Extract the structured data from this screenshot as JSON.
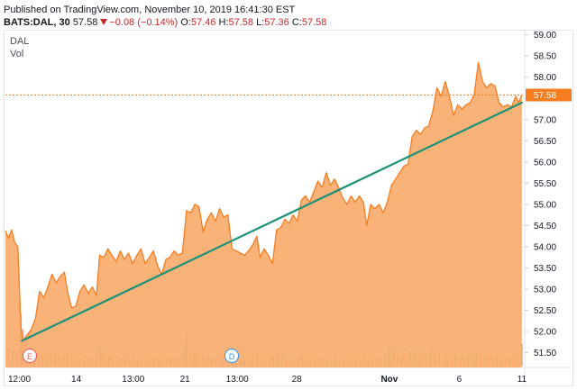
{
  "header": {
    "published": "Published on TradingView.com, November 10, 2019 16:41:30 EST",
    "symbol": "BATS:DAL, 30",
    "last": "57.58",
    "change": "−0.08 (−0.14%)",
    "open_label": "O:",
    "open": "57.46",
    "high_label": "H:",
    "high": "57.58",
    "low_label": "L:",
    "low": "57.36",
    "close_label": "C:",
    "close": "57.58"
  },
  "legend": {
    "symbol": "DAL",
    "volume": "Vol"
  },
  "markers": {
    "earnings": "E",
    "dividend": "D"
  },
  "colors": {
    "price_line": "#f57c1f",
    "area_fill": "#f8a867",
    "trendline": "#1b9178",
    "price_label_bg": "#f57c1f",
    "vol_up": "#8fc7a6",
    "vol_down": "#f2a3a3"
  },
  "chart_data": {
    "type": "area",
    "title": "",
    "xlabel": "",
    "ylabel": "",
    "ylim": [
      51.15,
      59.1
    ],
    "y_ticks": [
      "59.00",
      "58.50",
      "58.00",
      "57.50",
      "57.00",
      "56.50",
      "56.00",
      "55.50",
      "55.00",
      "54.50",
      "54.00",
      "53.50",
      "53.00",
      "52.50",
      "52.00",
      "51.50"
    ],
    "x_ticks": [
      "12:00",
      "14",
      "13:00",
      "21",
      "13:00",
      "28",
      "Nov",
      "6",
      "11"
    ],
    "last_price_label": "57.58",
    "trendline": {
      "from": [
        0.032,
        51.78
      ],
      "to": [
        0.998,
        57.4
      ]
    },
    "series": [
      {
        "values": [
          [
            0.0,
            54.38
          ],
          [
            0.006,
            54.2
          ],
          [
            0.012,
            54.4
          ],
          [
            0.018,
            54.1
          ],
          [
            0.024,
            54.0
          ],
          [
            0.03,
            52.1
          ],
          [
            0.034,
            51.78
          ],
          [
            0.042,
            51.92
          ],
          [
            0.05,
            52.05
          ],
          [
            0.058,
            52.3
          ],
          [
            0.066,
            52.95
          ],
          [
            0.074,
            52.8
          ],
          [
            0.082,
            53.05
          ],
          [
            0.09,
            53.35
          ],
          [
            0.098,
            53.15
          ],
          [
            0.106,
            53.3
          ],
          [
            0.114,
            53.4
          ],
          [
            0.12,
            52.95
          ],
          [
            0.128,
            52.55
          ],
          [
            0.136,
            52.6
          ],
          [
            0.144,
            52.95
          ],
          [
            0.152,
            53.1
          ],
          [
            0.16,
            52.9
          ],
          [
            0.168,
            53.05
          ],
          [
            0.176,
            52.85
          ],
          [
            0.182,
            53.8
          ],
          [
            0.19,
            53.75
          ],
          [
            0.198,
            53.95
          ],
          [
            0.206,
            53.8
          ],
          [
            0.214,
            53.65
          ],
          [
            0.222,
            53.9
          ],
          [
            0.23,
            53.7
          ],
          [
            0.238,
            53.85
          ],
          [
            0.246,
            53.6
          ],
          [
            0.254,
            53.8
          ],
          [
            0.262,
            53.95
          ],
          [
            0.27,
            53.6
          ],
          [
            0.278,
            53.75
          ],
          [
            0.286,
            53.9
          ],
          [
            0.294,
            53.55
          ],
          [
            0.302,
            53.35
          ],
          [
            0.31,
            53.7
          ],
          [
            0.318,
            53.75
          ],
          [
            0.326,
            53.9
          ],
          [
            0.334,
            53.8
          ],
          [
            0.342,
            53.85
          ],
          [
            0.35,
            54.85
          ],
          [
            0.358,
            54.8
          ],
          [
            0.366,
            55.0
          ],
          [
            0.374,
            54.95
          ],
          [
            0.382,
            54.35
          ],
          [
            0.39,
            54.65
          ],
          [
            0.398,
            54.8
          ],
          [
            0.406,
            54.6
          ],
          [
            0.414,
            54.9
          ],
          [
            0.422,
            54.7
          ],
          [
            0.43,
            54.75
          ],
          [
            0.438,
            53.95
          ],
          [
            0.446,
            53.9
          ],
          [
            0.454,
            53.85
          ],
          [
            0.462,
            53.8
          ],
          [
            0.47,
            53.9
          ],
          [
            0.478,
            54.05
          ],
          [
            0.486,
            54.25
          ],
          [
            0.492,
            53.75
          ],
          [
            0.5,
            53.95
          ],
          [
            0.508,
            53.8
          ],
          [
            0.516,
            53.6
          ],
          [
            0.524,
            54.4
          ],
          [
            0.532,
            54.45
          ],
          [
            0.54,
            54.65
          ],
          [
            0.548,
            54.55
          ],
          [
            0.556,
            54.75
          ],
          [
            0.564,
            54.6
          ],
          [
            0.572,
            55.1
          ],
          [
            0.58,
            55.2
          ],
          [
            0.588,
            55.05
          ],
          [
            0.596,
            55.3
          ],
          [
            0.604,
            55.55
          ],
          [
            0.612,
            55.4
          ],
          [
            0.62,
            55.75
          ],
          [
            0.628,
            55.45
          ],
          [
            0.636,
            55.6
          ],
          [
            0.644,
            55.4
          ],
          [
            0.652,
            55.15
          ],
          [
            0.66,
            55.0
          ],
          [
            0.668,
            55.2
          ],
          [
            0.676,
            55.05
          ],
          [
            0.684,
            55.2
          ],
          [
            0.692,
            55.05
          ],
          [
            0.698,
            54.5
          ],
          [
            0.706,
            55.0
          ],
          [
            0.714,
            54.9
          ],
          [
            0.722,
            55.0
          ],
          [
            0.73,
            54.8
          ],
          [
            0.738,
            55.05
          ],
          [
            0.746,
            55.45
          ],
          [
            0.754,
            55.6
          ],
          [
            0.762,
            55.75
          ],
          [
            0.77,
            55.9
          ],
          [
            0.778,
            55.95
          ],
          [
            0.786,
            56.6
          ],
          [
            0.794,
            56.75
          ],
          [
            0.802,
            56.65
          ],
          [
            0.81,
            56.8
          ],
          [
            0.818,
            56.85
          ],
          [
            0.826,
            57.2
          ],
          [
            0.834,
            57.75
          ],
          [
            0.842,
            57.55
          ],
          [
            0.85,
            57.9
          ],
          [
            0.858,
            57.55
          ],
          [
            0.866,
            57.1
          ],
          [
            0.874,
            57.35
          ],
          [
            0.882,
            57.25
          ],
          [
            0.89,
            57.35
          ],
          [
            0.898,
            57.4
          ],
          [
            0.906,
            57.6
          ],
          [
            0.914,
            58.35
          ],
          [
            0.922,
            57.9
          ],
          [
            0.93,
            57.75
          ],
          [
            0.938,
            57.85
          ],
          [
            0.946,
            57.8
          ],
          [
            0.954,
            57.4
          ],
          [
            0.962,
            57.3
          ],
          [
            0.97,
            57.35
          ],
          [
            0.978,
            57.3
          ],
          [
            0.986,
            57.55
          ],
          [
            0.992,
            57.4
          ],
          [
            0.998,
            57.58
          ]
        ]
      }
    ],
    "volume": [
      [
        0.006,
        0.35,
        "d"
      ],
      [
        0.014,
        0.3,
        "u"
      ],
      [
        0.022,
        0.28,
        "d"
      ],
      [
        0.03,
        1.0,
        "u"
      ],
      [
        0.034,
        0.7,
        "d"
      ],
      [
        0.04,
        0.5,
        "u"
      ],
      [
        0.048,
        0.28,
        "d"
      ],
      [
        0.056,
        0.22,
        "u"
      ],
      [
        0.064,
        0.25,
        "u"
      ],
      [
        0.072,
        0.2,
        "d"
      ],
      [
        0.08,
        0.18,
        "u"
      ],
      [
        0.088,
        0.24,
        "d"
      ],
      [
        0.096,
        0.18,
        "u"
      ],
      [
        0.104,
        0.16,
        "d"
      ],
      [
        0.112,
        0.17,
        "u"
      ],
      [
        0.12,
        0.22,
        "d"
      ],
      [
        0.128,
        0.15,
        "u"
      ],
      [
        0.136,
        0.18,
        "d"
      ],
      [
        0.144,
        0.14,
        "u"
      ],
      [
        0.152,
        0.2,
        "d"
      ],
      [
        0.16,
        0.14,
        "u"
      ],
      [
        0.168,
        0.16,
        "d"
      ],
      [
        0.176,
        0.22,
        "u"
      ],
      [
        0.184,
        0.3,
        "u"
      ],
      [
        0.192,
        0.22,
        "d"
      ],
      [
        0.2,
        0.16,
        "u"
      ],
      [
        0.208,
        0.14,
        "d"
      ],
      [
        0.216,
        0.18,
        "u"
      ],
      [
        0.224,
        0.13,
        "d"
      ],
      [
        0.232,
        0.15,
        "u"
      ],
      [
        0.24,
        0.12,
        "d"
      ],
      [
        0.248,
        0.14,
        "u"
      ],
      [
        0.256,
        0.12,
        "d"
      ],
      [
        0.264,
        0.13,
        "u"
      ],
      [
        0.272,
        0.15,
        "d"
      ],
      [
        0.28,
        0.12,
        "u"
      ],
      [
        0.288,
        0.16,
        "d"
      ],
      [
        0.296,
        0.14,
        "u"
      ],
      [
        0.304,
        0.13,
        "d"
      ],
      [
        0.312,
        0.14,
        "u"
      ],
      [
        0.32,
        0.16,
        "d"
      ],
      [
        0.328,
        0.14,
        "u"
      ],
      [
        0.336,
        0.15,
        "d"
      ],
      [
        0.344,
        0.3,
        "u"
      ],
      [
        0.35,
        0.62,
        "u"
      ],
      [
        0.358,
        0.28,
        "d"
      ],
      [
        0.366,
        0.2,
        "u"
      ],
      [
        0.374,
        0.18,
        "d"
      ],
      [
        0.382,
        0.15,
        "u"
      ],
      [
        0.39,
        0.14,
        "d"
      ],
      [
        0.398,
        0.16,
        "u"
      ],
      [
        0.406,
        0.13,
        "d"
      ],
      [
        0.414,
        0.14,
        "u"
      ],
      [
        0.422,
        0.12,
        "d"
      ],
      [
        0.43,
        0.14,
        "u"
      ],
      [
        0.438,
        0.3,
        "d"
      ],
      [
        0.446,
        0.2,
        "u"
      ],
      [
        0.454,
        0.14,
        "d"
      ],
      [
        0.462,
        0.12,
        "u"
      ],
      [
        0.47,
        0.13,
        "d"
      ],
      [
        0.478,
        0.15,
        "u"
      ],
      [
        0.486,
        0.22,
        "d"
      ],
      [
        0.494,
        0.14,
        "u"
      ],
      [
        0.502,
        0.12,
        "d"
      ],
      [
        0.51,
        0.14,
        "u"
      ],
      [
        0.518,
        0.16,
        "d"
      ],
      [
        0.526,
        0.22,
        "u"
      ],
      [
        0.534,
        0.18,
        "u"
      ],
      [
        0.542,
        0.14,
        "d"
      ],
      [
        0.55,
        0.13,
        "u"
      ],
      [
        0.558,
        0.15,
        "d"
      ],
      [
        0.566,
        0.14,
        "u"
      ],
      [
        0.574,
        0.16,
        "u"
      ],
      [
        0.582,
        0.14,
        "d"
      ],
      [
        0.59,
        0.13,
        "u"
      ],
      [
        0.598,
        0.15,
        "d"
      ],
      [
        0.606,
        0.14,
        "u"
      ],
      [
        0.614,
        0.16,
        "d"
      ],
      [
        0.622,
        0.13,
        "u"
      ],
      [
        0.63,
        0.15,
        "d"
      ],
      [
        0.638,
        0.14,
        "u"
      ],
      [
        0.646,
        0.13,
        "d"
      ],
      [
        0.654,
        0.14,
        "u"
      ],
      [
        0.662,
        0.16,
        "d"
      ],
      [
        0.67,
        0.13,
        "u"
      ],
      [
        0.678,
        0.14,
        "d"
      ],
      [
        0.686,
        0.13,
        "u"
      ],
      [
        0.694,
        0.2,
        "d"
      ],
      [
        0.702,
        0.14,
        "u"
      ],
      [
        0.71,
        0.13,
        "d"
      ],
      [
        0.718,
        0.15,
        "u"
      ],
      [
        0.726,
        0.14,
        "d"
      ],
      [
        0.734,
        0.16,
        "u"
      ],
      [
        0.742,
        0.35,
        "u"
      ],
      [
        0.75,
        0.22,
        "u"
      ],
      [
        0.758,
        0.18,
        "d"
      ],
      [
        0.766,
        0.16,
        "u"
      ],
      [
        0.774,
        0.2,
        "d"
      ],
      [
        0.782,
        0.28,
        "u"
      ],
      [
        0.79,
        0.22,
        "u"
      ],
      [
        0.798,
        0.18,
        "d"
      ],
      [
        0.806,
        0.2,
        "u"
      ],
      [
        0.814,
        0.22,
        "d"
      ],
      [
        0.822,
        0.3,
        "u"
      ],
      [
        0.83,
        0.26,
        "d"
      ],
      [
        0.838,
        0.22,
        "u"
      ],
      [
        0.846,
        0.18,
        "d"
      ],
      [
        0.854,
        0.2,
        "u"
      ],
      [
        0.862,
        0.16,
        "d"
      ],
      [
        0.87,
        0.22,
        "u"
      ],
      [
        0.878,
        0.18,
        "d"
      ],
      [
        0.886,
        0.16,
        "u"
      ],
      [
        0.894,
        0.18,
        "d"
      ],
      [
        0.902,
        0.2,
        "u"
      ],
      [
        0.91,
        0.26,
        "u"
      ],
      [
        0.918,
        0.22,
        "d"
      ],
      [
        0.926,
        0.18,
        "u"
      ],
      [
        0.934,
        0.2,
        "d"
      ],
      [
        0.942,
        0.16,
        "u"
      ],
      [
        0.95,
        0.18,
        "d"
      ],
      [
        0.958,
        0.15,
        "u"
      ],
      [
        0.966,
        0.16,
        "d"
      ],
      [
        0.974,
        0.14,
        "u"
      ],
      [
        0.982,
        0.16,
        "d"
      ],
      [
        0.99,
        0.12,
        "u"
      ],
      [
        0.998,
        0.42,
        "u"
      ]
    ]
  }
}
